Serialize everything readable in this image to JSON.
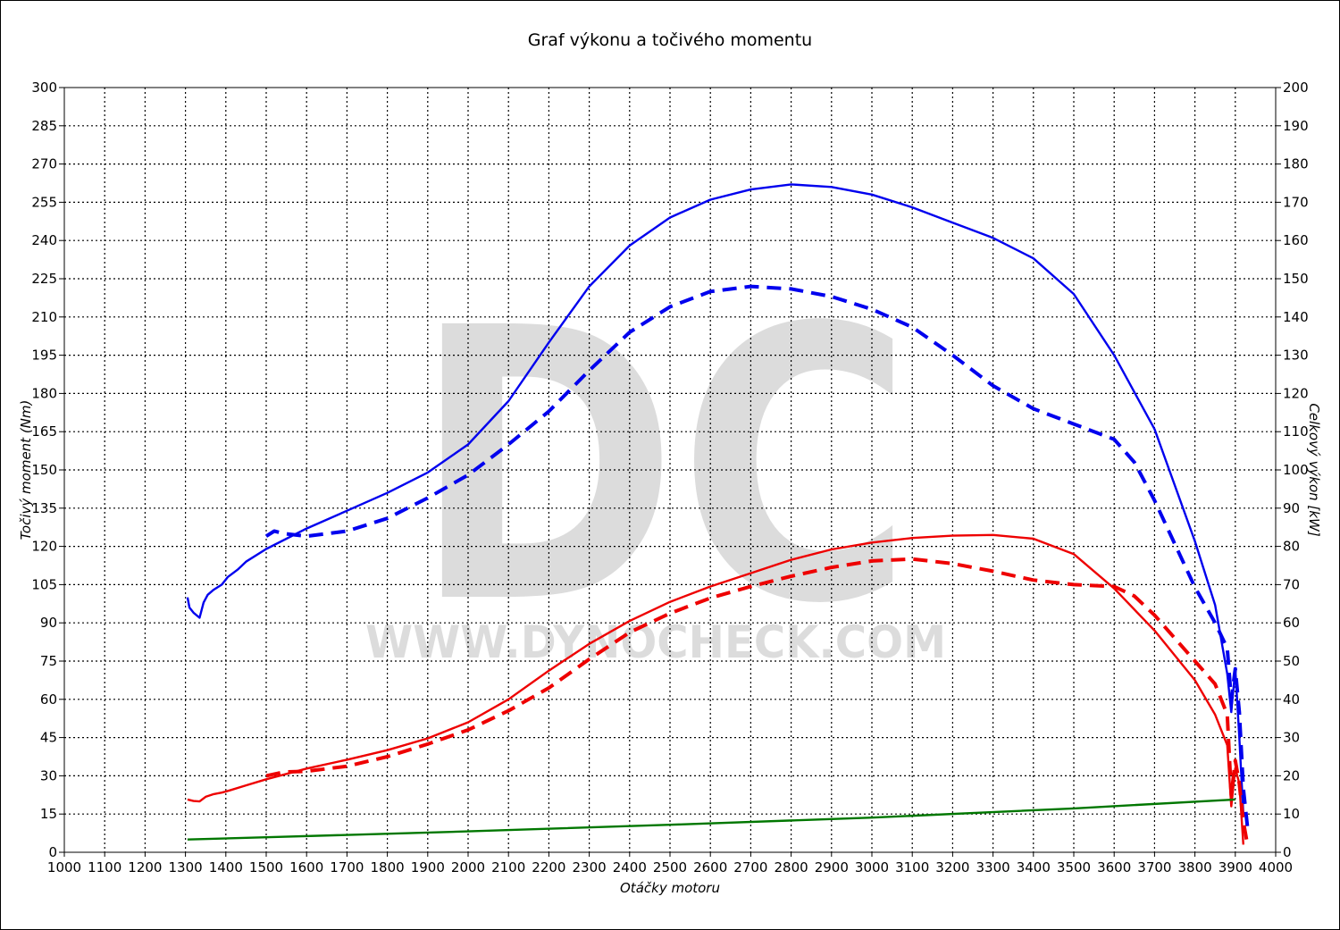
{
  "chart_data": {
    "type": "line",
    "title": "Graf výkonu a točivého momentu",
    "xlabel": "Otáčky motoru",
    "ylabel_left": "Točivý moment (Nm)",
    "ylabel_right": "Celkový výkon [kW]",
    "xlim": [
      1000,
      4000
    ],
    "ylim_left": [
      0,
      300
    ],
    "ylim_right": [
      0,
      200
    ],
    "x_ticks": [
      1000,
      1100,
      1200,
      1300,
      1400,
      1500,
      1600,
      1700,
      1800,
      1900,
      2000,
      2100,
      2200,
      2300,
      2400,
      2500,
      2600,
      2700,
      2800,
      2900,
      3000,
      3100,
      3200,
      3300,
      3400,
      3500,
      3600,
      3700,
      3800,
      3900,
      4000
    ],
    "y_ticks_left": [
      0,
      15,
      30,
      45,
      60,
      75,
      90,
      105,
      120,
      135,
      150,
      165,
      180,
      195,
      210,
      225,
      240,
      255,
      270,
      285,
      300
    ],
    "y_ticks_right": [
      0,
      10,
      20,
      30,
      40,
      50,
      60,
      70,
      80,
      90,
      100,
      110,
      120,
      130,
      140,
      150,
      160,
      170,
      180,
      190,
      200
    ],
    "grid": true,
    "watermark": {
      "logo": "DC",
      "url": "WWW.DYNOCHECK.COM"
    },
    "series": [
      {
        "color": "#0000ee",
        "dash": "solid",
        "axis": "left",
        "x": [
          1305,
          1310,
          1320,
          1335,
          1345,
          1355,
          1370,
          1390,
          1405,
          1430,
          1450,
          1500,
          1600,
          1700,
          1800,
          1900,
          2000,
          2100,
          2200,
          2300,
          2400,
          2500,
          2600,
          2700,
          2800,
          2900,
          3000,
          3100,
          3200,
          3300,
          3400,
          3500,
          3600,
          3700,
          3800,
          3850,
          3880,
          3890,
          3900,
          3910,
          3920
        ],
        "y": [
          100,
          96,
          94,
          92,
          98,
          101,
          103,
          105,
          108,
          111,
          114,
          119,
          127,
          134,
          141,
          149,
          160,
          177,
          200,
          222,
          238,
          249,
          256,
          260,
          262,
          261,
          258,
          253,
          247,
          241,
          233,
          219,
          195,
          166,
          122,
          97,
          70,
          55,
          72,
          45,
          15
        ]
      },
      {
        "color": "#0000ee",
        "dash": "dashed",
        "axis": "left",
        "x": [
          1500,
          1520,
          1545,
          1600,
          1700,
          1800,
          1900,
          2000,
          2100,
          2200,
          2300,
          2400,
          2500,
          2600,
          2700,
          2800,
          2900,
          3000,
          3100,
          3200,
          3300,
          3400,
          3500,
          3600,
          3650,
          3700,
          3800,
          3850,
          3880,
          3890,
          3900,
          3910,
          3920,
          3930
        ],
        "y": [
          124,
          126,
          125,
          124,
          126,
          131,
          139,
          148,
          160,
          173,
          189,
          204,
          214,
          220,
          222,
          221,
          218,
          213,
          206,
          195,
          183,
          174,
          168,
          162,
          153,
          138,
          104,
          90,
          80,
          60,
          72,
          55,
          25,
          10
        ]
      },
      {
        "color": "#ee0000",
        "dash": "solid",
        "axis": "right",
        "x": [
          1305,
          1320,
          1335,
          1350,
          1370,
          1390,
          1410,
          1450,
          1500,
          1600,
          1700,
          1800,
          1900,
          2000,
          2100,
          2200,
          2300,
          2400,
          2500,
          2600,
          2700,
          2800,
          2900,
          3000,
          3100,
          3200,
          3300,
          3400,
          3500,
          3600,
          3700,
          3800,
          3850,
          3880,
          3890,
          3900,
          3910,
          3920
        ],
        "y": [
          13.8,
          13.4,
          13.3,
          14.5,
          15.2,
          15.6,
          16.2,
          17.5,
          19.1,
          21.9,
          24.2,
          26.7,
          29.8,
          34.0,
          40.0,
          47.5,
          54.5,
          60.5,
          65.5,
          69.5,
          73.0,
          76.5,
          79.2,
          81.0,
          82.2,
          82.8,
          83.0,
          82.0,
          78.0,
          69.0,
          58.0,
          45.0,
          36.0,
          28.0,
          12.0,
          22.0,
          18.0,
          2.0
        ]
      },
      {
        "color": "#ee0000",
        "dash": "dashed",
        "axis": "right",
        "x": [
          1500,
          1545,
          1600,
          1700,
          1800,
          1900,
          2000,
          2100,
          2200,
          2300,
          2400,
          2500,
          2600,
          2700,
          2800,
          2900,
          3000,
          3100,
          3200,
          3300,
          3400,
          3500,
          3600,
          3650,
          3700,
          3800,
          3850,
          3880,
          3890,
          3900,
          3910,
          3920,
          3930
        ],
        "y": [
          20.0,
          21.0,
          21.2,
          22.5,
          25.0,
          28.3,
          32.0,
          37.0,
          43.0,
          50.5,
          57.5,
          62.5,
          66.5,
          69.5,
          72.2,
          74.5,
          76.2,
          76.7,
          75.5,
          73.5,
          71.2,
          70.0,
          69.5,
          67.0,
          62.0,
          50.0,
          44.0,
          36.0,
          15.0,
          24.0,
          18.0,
          8.0,
          2.0
        ]
      },
      {
        "color": "#007700",
        "dash": "solid",
        "axis": "left",
        "x": [
          1305,
          1500,
          2000,
          2500,
          3000,
          3500,
          3900
        ],
        "y": [
          5.0,
          5.9,
          8.2,
          10.8,
          13.6,
          17.2,
          20.7
        ]
      }
    ]
  }
}
